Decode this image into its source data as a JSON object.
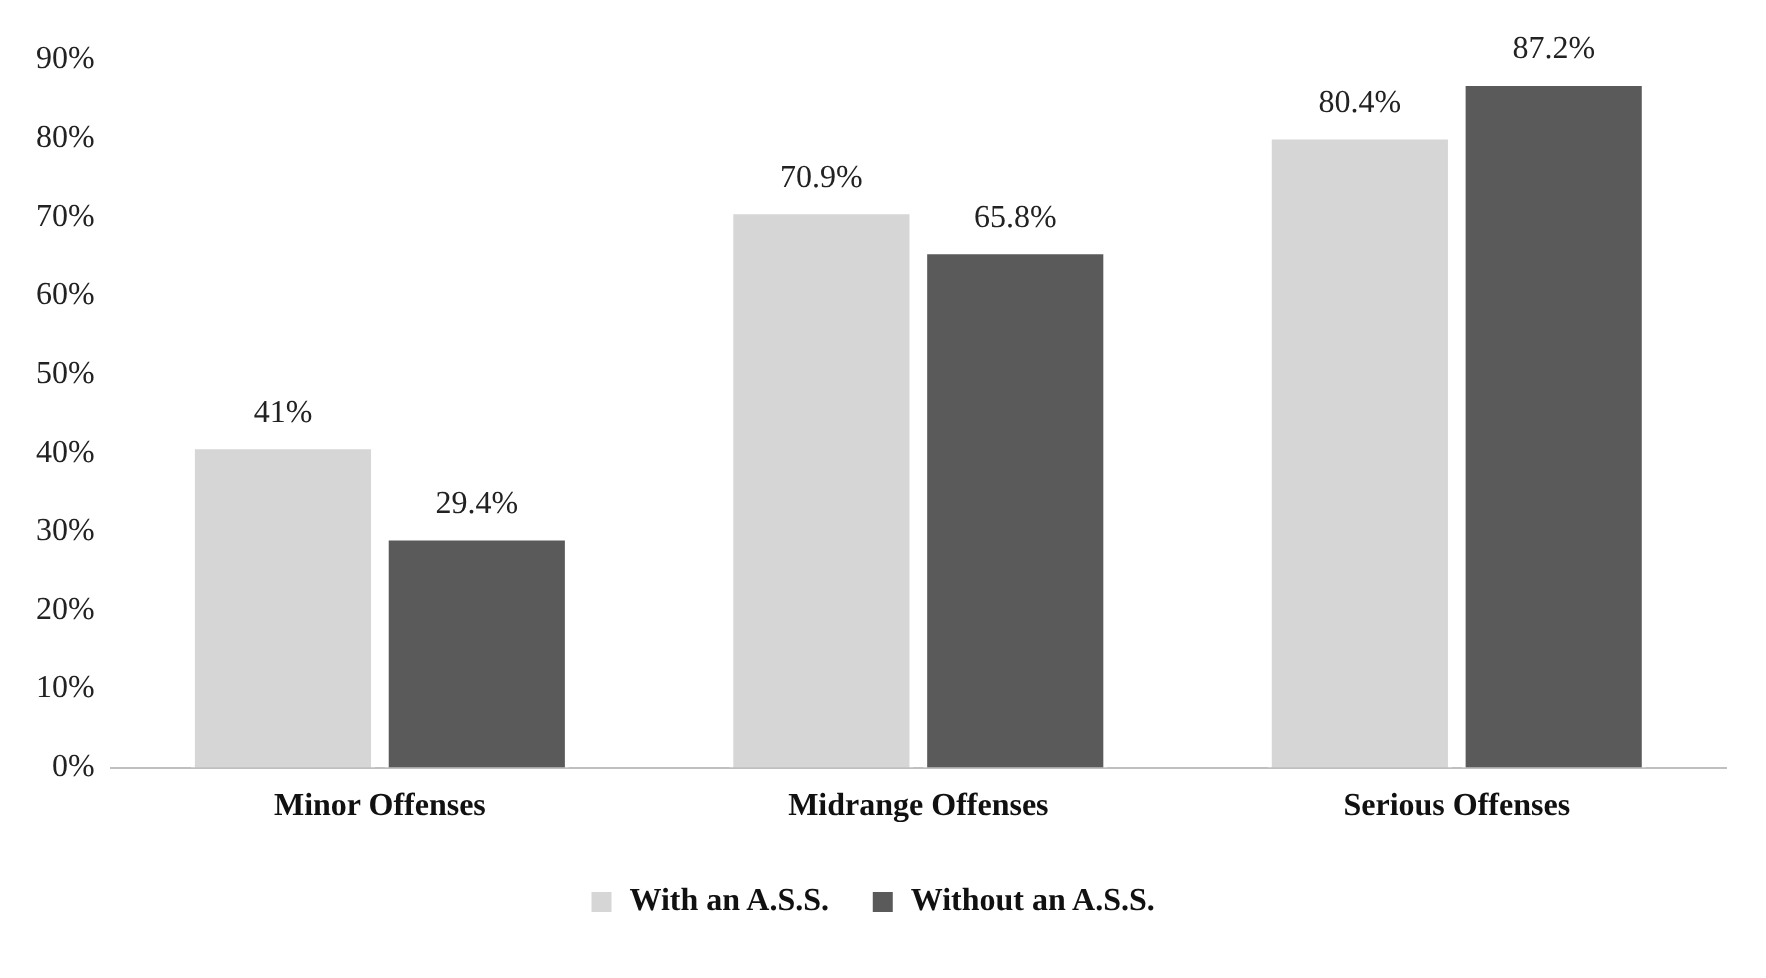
{
  "chart_data": {
    "type": "bar",
    "categories": [
      "Minor Offenses",
      "Midrange Offenses",
      "Serious Offenses"
    ],
    "series": [
      {
        "name": "With an A.S.S.",
        "color": "#d6d6d6",
        "values": [
          41,
          70.9,
          80.4
        ],
        "value_labels": [
          "41%",
          "70.9%",
          "80.4%"
        ]
      },
      {
        "name": "Without an A.S.S.",
        "color": "#5a5a5a",
        "values": [
          29.4,
          65.8,
          87.2
        ],
        "value_labels": [
          "29.4%",
          "65.8%",
          "87.2%"
        ]
      }
    ],
    "ylim": [
      0,
      90
    ],
    "yticks": [
      {
        "value": 0,
        "label": "0%"
      },
      {
        "value": 10,
        "label": "10%"
      },
      {
        "value": 20,
        "label": "20%"
      },
      {
        "value": 30,
        "label": "30%"
      },
      {
        "value": 40,
        "label": "40%"
      },
      {
        "value": 50,
        "label": "50%"
      },
      {
        "value": 60,
        "label": "60%"
      },
      {
        "value": 70,
        "label": "70%"
      },
      {
        "value": 80,
        "label": "80%"
      },
      {
        "value": 90,
        "label": "90%"
      }
    ],
    "grid": false,
    "legend": "bottom"
  }
}
